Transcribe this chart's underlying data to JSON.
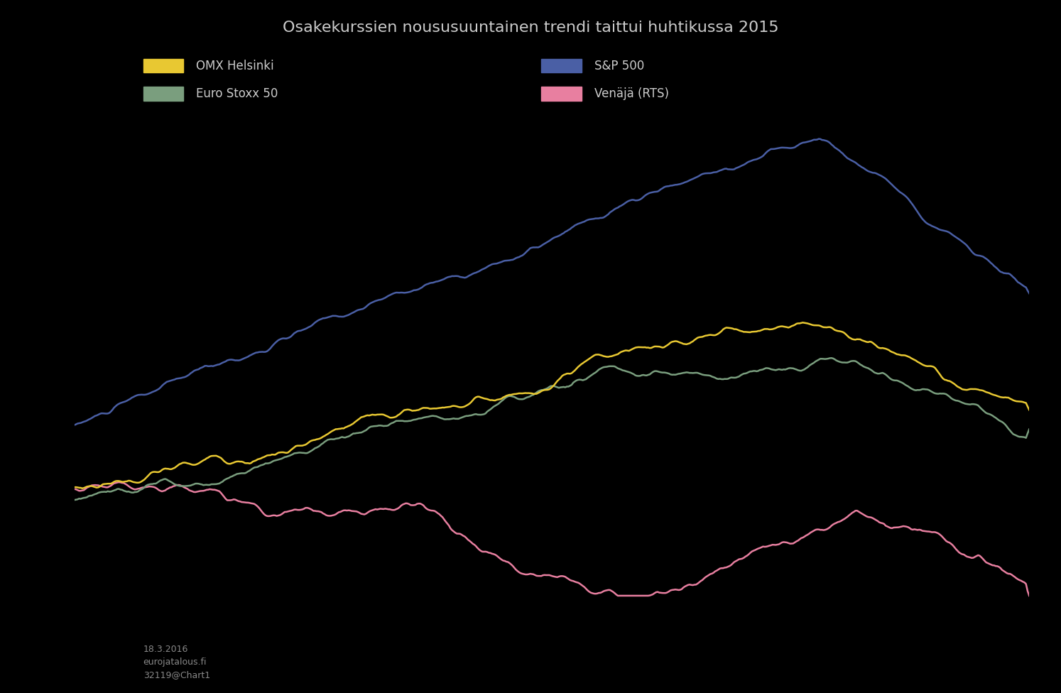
{
  "title": "Osakekurssien noususuuntainen trendi taittui huhtikussa 2015",
  "background_color": "#000000",
  "text_color": "#cccccc",
  "footer_text": "18.3.2016\neurojatalous.fi\n32119@Chart1",
  "line_colors": {
    "yellow": "#e8c832",
    "green": "#7a9e7e",
    "blue": "#4a5fa5",
    "pink": "#e87fa0"
  },
  "legend_labels": {
    "yellow": "OMX Helsinki",
    "green": "Euro Stoxx 50",
    "blue": "S&P 500",
    "pink": "Venäjä (RTS)"
  },
  "n_points": 600,
  "figsize": [
    14.94,
    9.76
  ],
  "dpi": 100
}
